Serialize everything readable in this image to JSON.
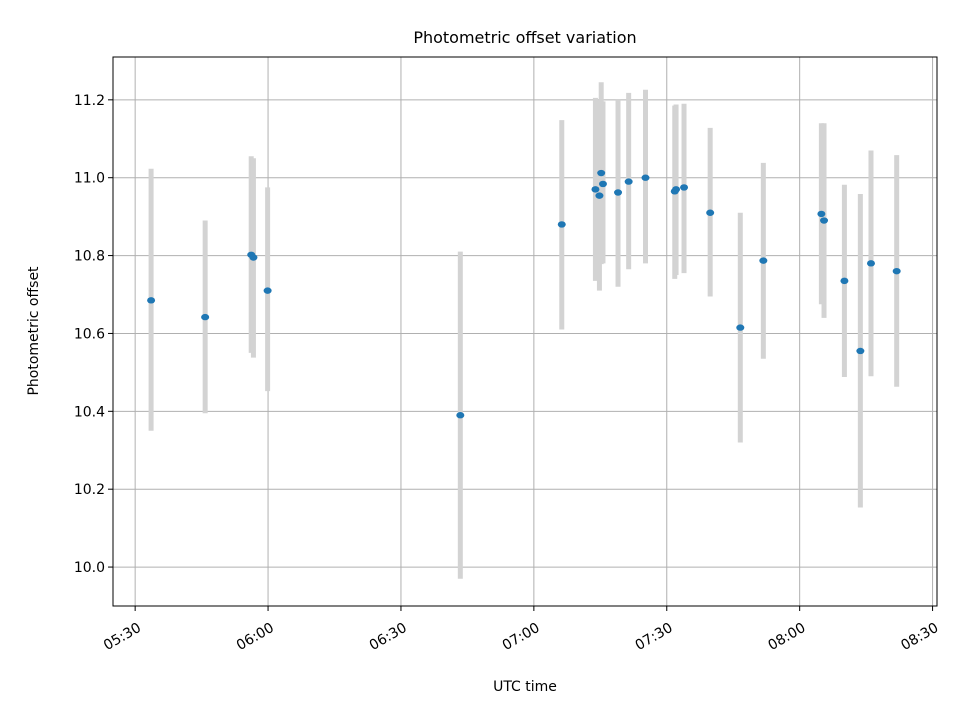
{
  "chart_data": {
    "type": "scatter",
    "title": "Photometric offset variation",
    "xlabel": "UTC time",
    "ylabel": "Photometric offset",
    "xlim": [
      "05:25",
      "08:31"
    ],
    "ylim": [
      9.9,
      11.31
    ],
    "x_ticks": [
      "05:30",
      "06:00",
      "06:30",
      "07:00",
      "07:30",
      "08:00",
      "08:30"
    ],
    "y_ticks": [
      "10.0",
      "10.2",
      "10.4",
      "10.6",
      "10.8",
      "11.0",
      "11.2"
    ],
    "grid": true,
    "legend": "none",
    "point_color": "#1f77b4",
    "errorbar_color": "#d3d3d3",
    "points": [
      {
        "x": "05:33:36",
        "y": 10.685,
        "low": 10.35,
        "high": 11.023
      },
      {
        "x": "05:45:48",
        "y": 10.642,
        "low": 10.395,
        "high": 10.89
      },
      {
        "x": "05:56:12",
        "y": 10.802,
        "low": 10.55,
        "high": 11.055
      },
      {
        "x": "05:56:42",
        "y": 10.795,
        "low": 10.538,
        "high": 11.05
      },
      {
        "x": "05:59:54",
        "y": 10.71,
        "low": 10.452,
        "high": 10.975
      },
      {
        "x": "06:43:24",
        "y": 10.39,
        "low": 9.97,
        "high": 10.81
      },
      {
        "x": "07:06:18",
        "y": 10.88,
        "low": 10.61,
        "high": 11.148
      },
      {
        "x": "07:13:54",
        "y": 10.97,
        "low": 10.735,
        "high": 11.205
      },
      {
        "x": "07:14:48",
        "y": 10.954,
        "low": 10.71,
        "high": 11.198
      },
      {
        "x": "07:15:12",
        "y": 11.012,
        "low": 10.778,
        "high": 11.245
      },
      {
        "x": "07:15:36",
        "y": 10.984,
        "low": 10.78,
        "high": 11.196
      },
      {
        "x": "07:19:00",
        "y": 10.962,
        "low": 10.72,
        "high": 11.2
      },
      {
        "x": "07:21:24",
        "y": 10.99,
        "low": 10.765,
        "high": 11.218
      },
      {
        "x": "07:25:12",
        "y": 11.0,
        "low": 10.78,
        "high": 11.226
      },
      {
        "x": "07:31:48",
        "y": 10.965,
        "low": 10.74,
        "high": 11.185
      },
      {
        "x": "07:32:06",
        "y": 10.97,
        "low": 10.75,
        "high": 11.188
      },
      {
        "x": "07:33:54",
        "y": 10.975,
        "low": 10.755,
        "high": 11.19
      },
      {
        "x": "07:39:48",
        "y": 10.91,
        "low": 10.695,
        "high": 11.128
      },
      {
        "x": "07:46:36",
        "y": 10.615,
        "low": 10.32,
        "high": 10.91
      },
      {
        "x": "07:51:48",
        "y": 10.787,
        "low": 10.535,
        "high": 11.038
      },
      {
        "x": "08:04:54",
        "y": 10.907,
        "low": 10.675,
        "high": 11.14
      },
      {
        "x": "08:05:30",
        "y": 10.89,
        "low": 10.64,
        "high": 11.14
      },
      {
        "x": "08:10:06",
        "y": 10.735,
        "low": 10.488,
        "high": 10.982
      },
      {
        "x": "08:13:42",
        "y": 10.555,
        "low": 10.153,
        "high": 10.958
      },
      {
        "x": "08:16:06",
        "y": 10.78,
        "low": 10.49,
        "high": 11.07
      },
      {
        "x": "08:21:54",
        "y": 10.76,
        "low": 10.463,
        "high": 11.058
      }
    ]
  }
}
